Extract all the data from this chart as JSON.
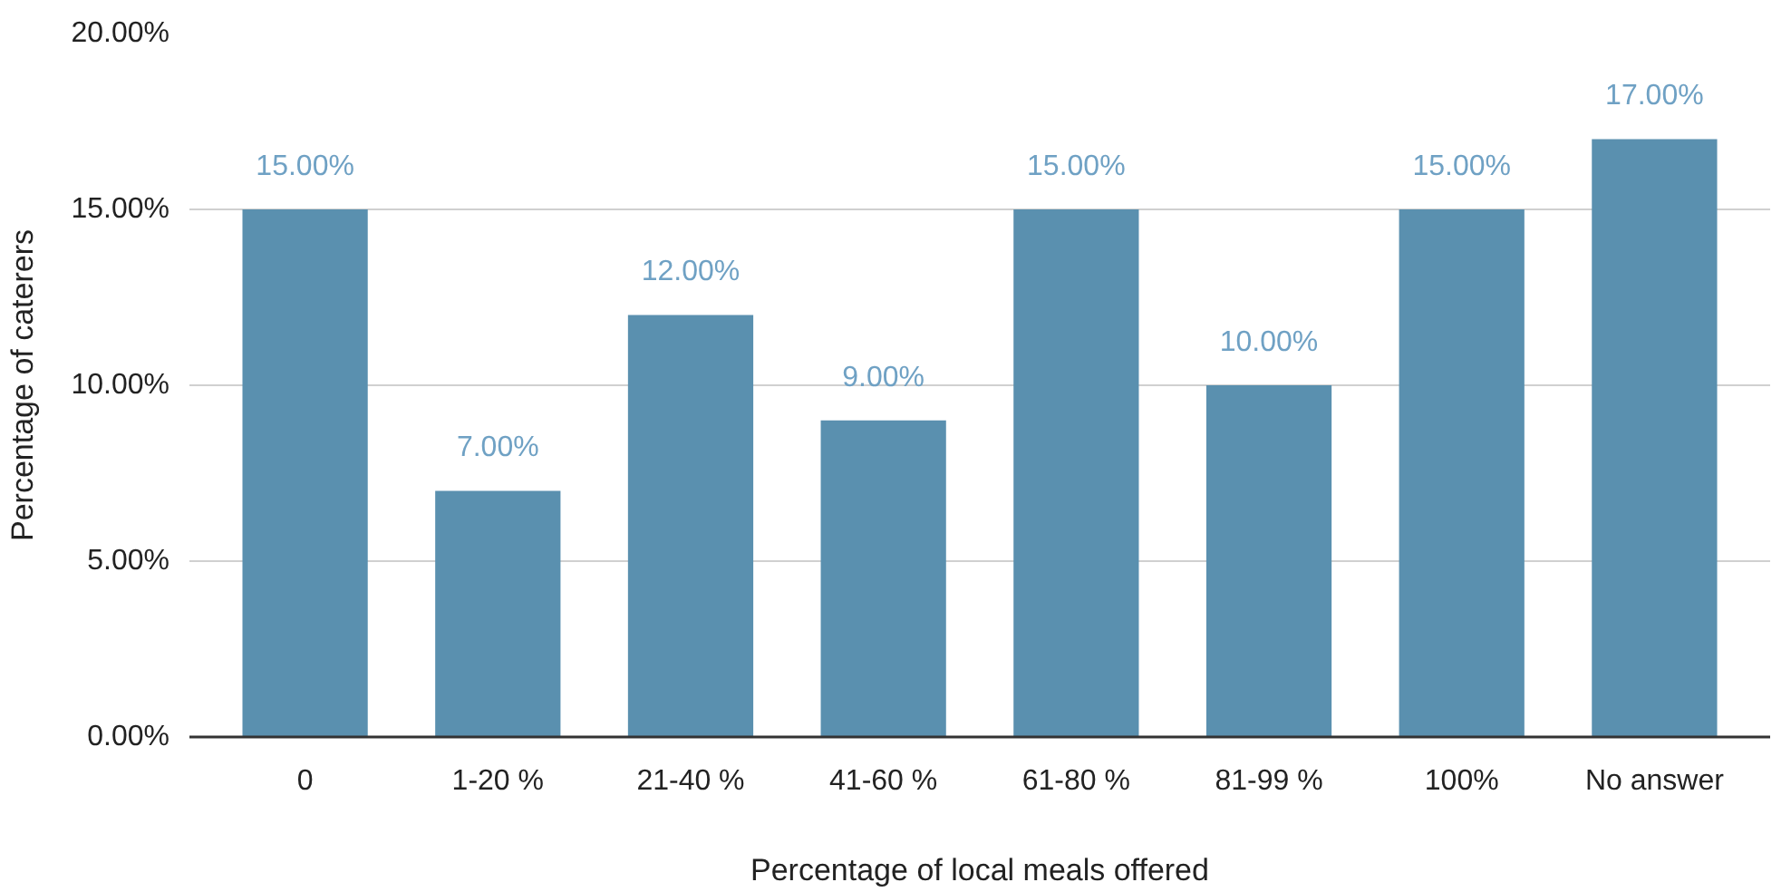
{
  "chart_data": {
    "type": "bar",
    "xlabel": "Percentage of local meals offered",
    "ylabel": "Percentage of caterers",
    "categories": [
      "0",
      "1-20 %",
      "21-40 %",
      "41-60 %",
      "61-80 %",
      "81-99 %",
      "100%",
      "No answer"
    ],
    "values": [
      15,
      7,
      12,
      9,
      15,
      10,
      15,
      17
    ],
    "value_labels": [
      "15.00%",
      "7.00%",
      "12.00%",
      "9.00%",
      "15.00%",
      "10.00%",
      "15.00%",
      "17.00%"
    ],
    "color": "#5a90af",
    "ylim": [
      0,
      20
    ],
    "yticks": [
      {
        "value": 0,
        "label": "0.00%"
      },
      {
        "value": 5,
        "label": "5.00%"
      },
      {
        "value": 10,
        "label": "10.00%"
      },
      {
        "value": 15,
        "label": "15.00%"
      },
      {
        "value": 20,
        "label": "20.00%"
      }
    ],
    "grid": "y"
  }
}
